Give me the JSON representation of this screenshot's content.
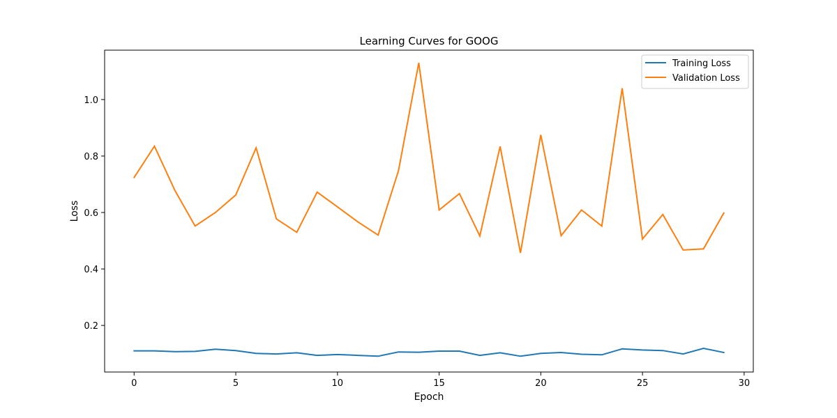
{
  "chart_data": {
    "type": "line",
    "title": "Learning Curves for GOOG",
    "xlabel": "Epoch",
    "ylabel": "Loss",
    "xlim": [
      -1.45,
      30.45
    ],
    "ylim": [
      0.035,
      1.175
    ],
    "x": [
      0,
      1,
      2,
      3,
      4,
      5,
      6,
      7,
      8,
      9,
      10,
      11,
      12,
      13,
      14,
      15,
      16,
      17,
      18,
      19,
      20,
      21,
      22,
      23,
      24,
      25,
      26,
      27,
      28,
      29
    ],
    "xticks": [
      0,
      5,
      10,
      15,
      20,
      25,
      30
    ],
    "yticks": [
      0.2,
      0.4,
      0.6,
      0.8,
      1.0
    ],
    "xtick_labels": [
      "0",
      "5",
      "10",
      "15",
      "20",
      "25",
      "30"
    ],
    "ytick_labels": [
      "0.2",
      "0.4",
      "0.6",
      "0.8",
      "1.0"
    ],
    "series": [
      {
        "name": "Training Loss",
        "color": "#1f77b4",
        "values": [
          0.11,
          0.11,
          0.107,
          0.108,
          0.116,
          0.111,
          0.101,
          0.099,
          0.103,
          0.094,
          0.097,
          0.094,
          0.091,
          0.106,
          0.105,
          0.109,
          0.109,
          0.094,
          0.103,
          0.091,
          0.101,
          0.104,
          0.098,
          0.096,
          0.117,
          0.113,
          0.111,
          0.099,
          0.119,
          0.104
        ]
      },
      {
        "name": "Validation Loss",
        "color": "#ff7f0e",
        "values": [
          0.724,
          0.835,
          0.679,
          0.552,
          0.6,
          0.662,
          0.829,
          0.577,
          0.53,
          0.672,
          0.62,
          0.567,
          0.52,
          0.748,
          1.13,
          0.609,
          0.667,
          0.517,
          0.834,
          0.457,
          0.875,
          0.518,
          0.609,
          0.552,
          1.04,
          0.506,
          0.593,
          0.467,
          0.471,
          0.598
        ]
      }
    ],
    "grid": false,
    "legend": "top-right"
  }
}
